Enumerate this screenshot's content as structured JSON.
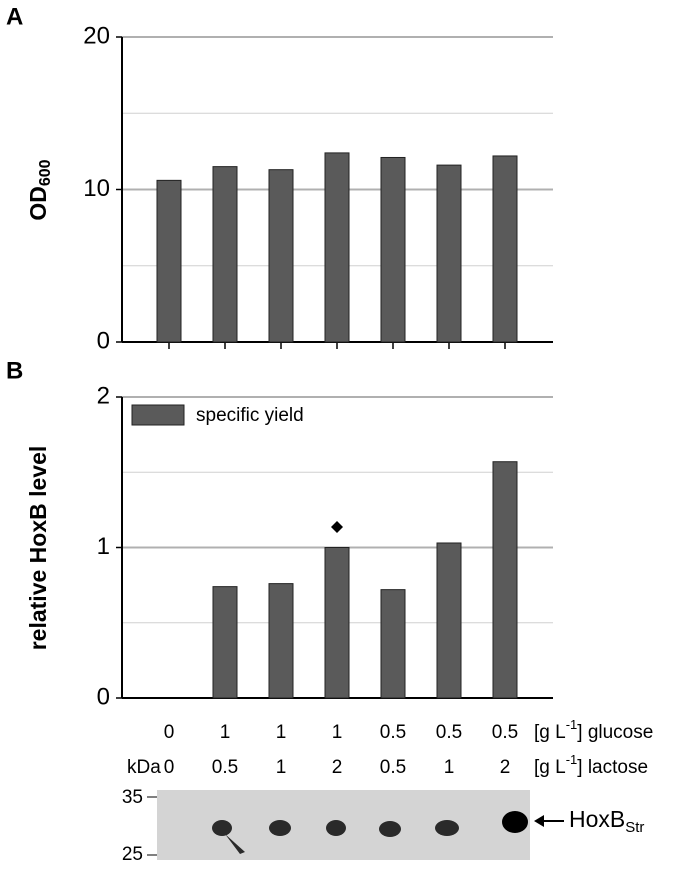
{
  "chart_data": [
    {
      "type": "bar",
      "panel": "A",
      "ylabel": "OD",
      "ylabel_sub": "600",
      "categories": [
        null,
        null,
        null,
        null,
        null,
        null,
        null
      ],
      "values": [
        10.6,
        11.5,
        11.3,
        12.4,
        12.1,
        11.6,
        12.2
      ],
      "color": "#5a5a5a",
      "ylim": [
        0,
        20
      ],
      "yticks": [
        0,
        10,
        20
      ],
      "minor_yticks": [
        5,
        15
      ],
      "grid": true
    },
    {
      "type": "bar",
      "panel": "B",
      "ylabel": "relative HoxB level",
      "categories": [
        null,
        null,
        null,
        null,
        null,
        null,
        null
      ],
      "series": [
        {
          "name": "specific yield",
          "color": "#5a5a5a",
          "values": [
            0,
            0.74,
            0.76,
            1.0,
            0.72,
            1.03,
            1.57
          ]
        }
      ],
      "ylim": [
        0,
        2
      ],
      "yticks": [
        0,
        1,
        2
      ],
      "minor_yticks": [
        0.5,
        1.5
      ],
      "grid": true,
      "legend": "top-left"
    }
  ],
  "conditions": {
    "glucose": [
      0,
      1,
      1,
      1,
      0.5,
      0.5,
      0.5
    ],
    "lactose": [
      0,
      0.5,
      1,
      2,
      0.5,
      1,
      2
    ],
    "unit_prefix": "[g L",
    "unit_sup": "-1",
    "glucose_label": "] glucose",
    "lactose_label": "] lactose"
  },
  "blot": {
    "unit": "kDa",
    "markers": [
      35,
      25
    ],
    "label": "HoxB",
    "label_sub": "Str"
  }
}
